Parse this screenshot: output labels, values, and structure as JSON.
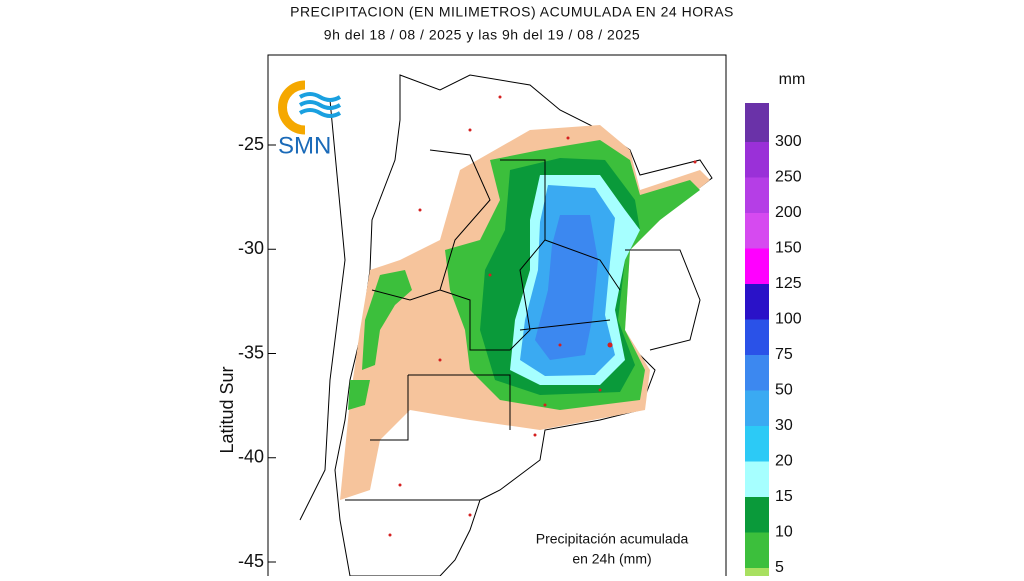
{
  "header": {
    "title": "PRECIPITACION (EN MILIMETROS) ACUMULADA EN 24 HORAS",
    "subtitle": "9h del 18 / 08 / 2025  y las 9h del 19 / 08 / 2025"
  },
  "map": {
    "logo": "SMN",
    "y_axis_label": "Latitud Sur",
    "yticks": [
      -25,
      -30,
      -35,
      -40,
      -45
    ],
    "annotation": [
      "Precipitación acumulada",
      "en 24h (mm)"
    ]
  },
  "legend": {
    "unit": "mm",
    "levels": [
      300,
      250,
      200,
      150,
      125,
      100,
      75,
      50,
      30,
      20,
      15,
      10,
      5
    ],
    "colors": [
      "#6a32a8",
      "#9a30d8",
      "#b53ee6",
      "#d64af0",
      "#ff00ff",
      "#2a12c8",
      "#2a52e8",
      "#3c88f0",
      "#3aaaf2",
      "#2ccaf6",
      "#a6ffff",
      "#0a9a3a",
      "#3cbf3c",
      "#a8e060"
    ]
  }
}
